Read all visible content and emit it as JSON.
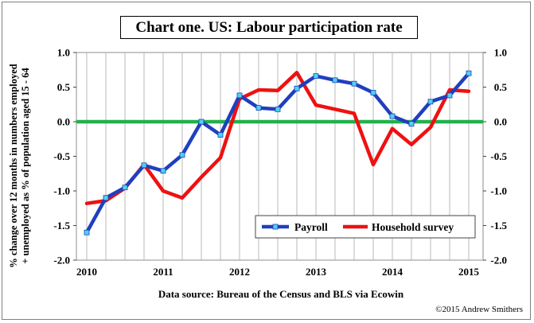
{
  "chart_data": {
    "type": "line",
    "title": "Chart one. US: Labour participation rate",
    "ylabel": "% change over 12 months in numbers employed + unemployed as % of population aged 15 - 64",
    "xlabel": "Data source: Bureau of the Census and BLS via Ecowin",
    "credit": "©2015 Andrew Smithers",
    "ylim": [
      -2.0,
      1.0
    ],
    "xlim": [
      2010,
      2015.25
    ],
    "yticks": [
      "1.0",
      "0.5",
      "0.0",
      "-0.5",
      "-1.0",
      "-1.5",
      "-2.0"
    ],
    "ytick_values": [
      1.0,
      0.5,
      0.0,
      -0.5,
      -1.0,
      -1.5,
      -2.0
    ],
    "xticks": [
      "2010",
      "2011",
      "2012",
      "2013",
      "2014",
      "2015"
    ],
    "xtick_values": [
      2010,
      2011,
      2012,
      2013,
      2014,
      2015
    ],
    "zero_line_color": "#22b14c",
    "legend_position": "bottom-right",
    "series": [
      {
        "name": "Payroll",
        "color": "#1f3fbf",
        "marker_color": "#4fd2f0",
        "x": [
          2010,
          2010.25,
          2010.5,
          2010.75,
          2011,
          2011.25,
          2011.5,
          2011.75,
          2012,
          2012.25,
          2012.5,
          2012.75,
          2013,
          2013.25,
          2013.5,
          2013.75,
          2014,
          2014.25,
          2014.5,
          2014.75,
          2015
        ],
        "values": [
          -1.6,
          -1.1,
          -0.95,
          -0.63,
          -0.71,
          -0.48,
          0.0,
          -0.19,
          0.38,
          0.2,
          0.18,
          0.48,
          0.66,
          0.6,
          0.55,
          0.42,
          0.08,
          -0.03,
          0.29,
          0.38,
          0.7
        ]
      },
      {
        "name": "Household survey",
        "color": "#ee1111",
        "x": [
          2010,
          2010.25,
          2010.5,
          2010.75,
          2011,
          2011.25,
          2011.5,
          2011.75,
          2012,
          2012.25,
          2012.5,
          2012.75,
          2013,
          2013.25,
          2013.5,
          2013.75,
          2014,
          2014.25,
          2014.5,
          2014.75,
          2015
        ],
        "values": [
          -1.18,
          -1.14,
          -0.96,
          -0.62,
          -1.0,
          -1.1,
          -0.8,
          -0.52,
          0.33,
          0.46,
          0.45,
          0.71,
          0.24,
          0.18,
          0.12,
          -0.62,
          -0.1,
          -0.33,
          -0.08,
          0.46,
          0.44
        ]
      }
    ]
  }
}
